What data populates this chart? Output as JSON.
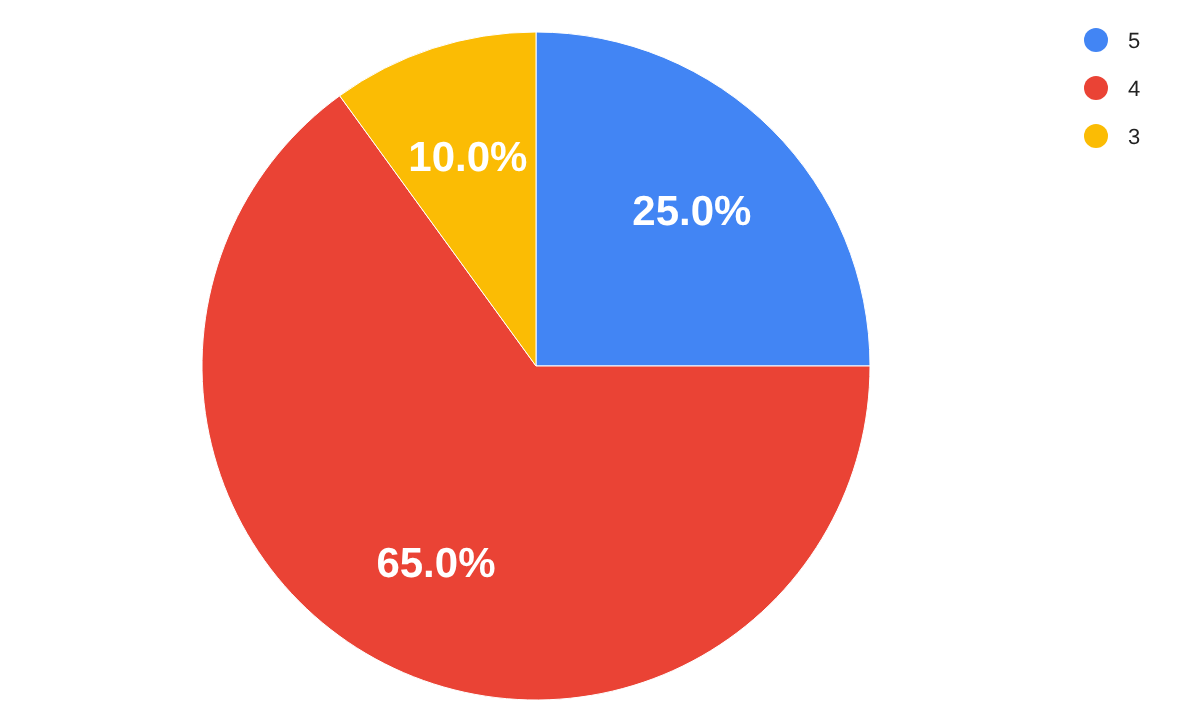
{
  "chart_data": {
    "type": "pie",
    "categories": [
      "5",
      "4",
      "3"
    ],
    "values": [
      25,
      65,
      10
    ],
    "colors": [
      "#4285f4",
      "#ea4335",
      "#fbbc04"
    ],
    "value_labels": [
      "25.0%",
      "65.0%",
      "10.0%"
    ],
    "legend": "top right"
  }
}
